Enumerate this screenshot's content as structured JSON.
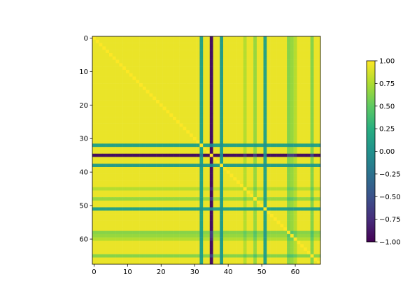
{
  "chart_data": {
    "type": "heatmap",
    "title": "",
    "xlabel": "",
    "ylabel": "",
    "size": 68,
    "xlim": [
      -0.5,
      67.5
    ],
    "ylim": [
      67.5,
      -0.5
    ],
    "x_ticks": [
      0,
      10,
      20,
      30,
      40,
      50,
      60
    ],
    "y_ticks": [
      0,
      10,
      20,
      30,
      40,
      50,
      60
    ],
    "colormap": "viridis",
    "colorbar": {
      "range": [
        -1.0,
        1.0
      ],
      "ticks": [
        "1.00",
        "0.75",
        "0.50",
        "0.25",
        "0.00",
        "−0.25",
        "−0.50",
        "−0.75",
        "−1.00"
      ],
      "tick_values": [
        1.0,
        0.75,
        0.5,
        0.25,
        0.0,
        -0.25,
        -0.5,
        -0.75,
        -1.0
      ]
    },
    "base_value": 0.97,
    "band_values": [
      {
        "index": 32,
        "value": 0.15
      },
      {
        "index": 35,
        "value": -0.95
      },
      {
        "index": 38,
        "value": 0.1
      },
      {
        "index": 45,
        "value": 0.8
      },
      {
        "index": 48,
        "value": 0.7
      },
      {
        "index": 51,
        "value": 0.15
      },
      {
        "index": 58,
        "value": 0.65
      },
      {
        "index": 59,
        "value": 0.7
      },
      {
        "index": 60,
        "value": 0.8
      },
      {
        "index": 65,
        "value": 0.65
      }
    ],
    "grid": false,
    "legend": "none"
  }
}
